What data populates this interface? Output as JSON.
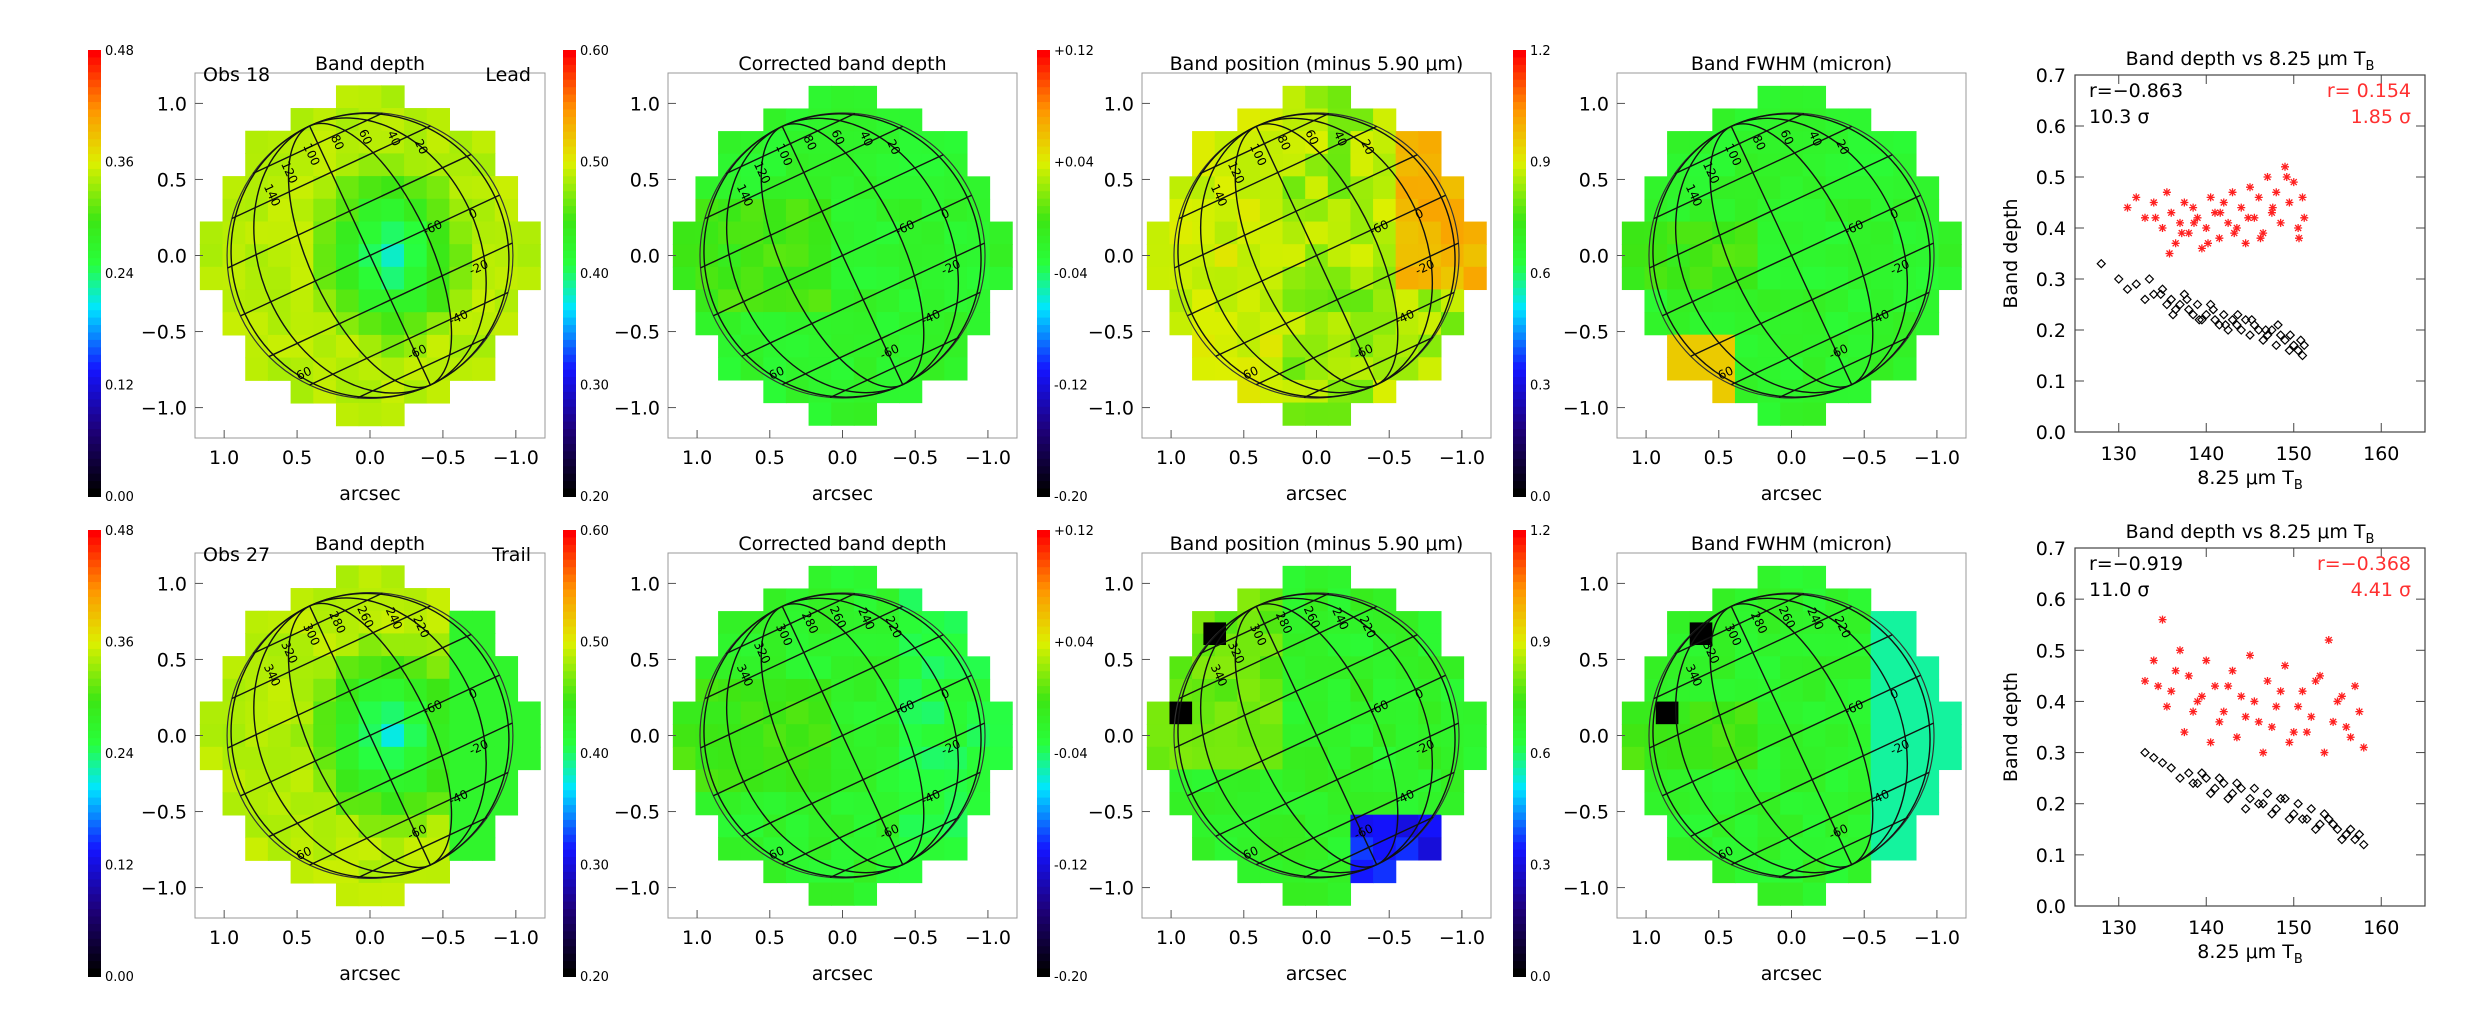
{
  "figure": {
    "rows": [
      {
        "obs_label": "Obs 18",
        "side_label": "Lead",
        "maps": [
          {
            "title": "Band depth",
            "cbar": {
              "min": "0.00",
              "ticks": [
                "0.12",
                "0.24",
                "0.36"
              ],
              "max": "0.48"
            },
            "mode": "depth"
          },
          {
            "title": "Corrected band depth",
            "cbar": {
              "min": "0.20",
              "ticks": [
                "0.30",
                "0.40",
                "0.50"
              ],
              "max": "0.60"
            },
            "mode": "corr"
          },
          {
            "title": "Band position (minus 5.90 μm)",
            "cbar": {
              "min": "-0.20",
              "ticks": [
                "-0.12",
                "-0.04",
                "+0.04"
              ],
              "max": "+0.12"
            },
            "mode": "pos"
          },
          {
            "title": "Band FWHM (micron)",
            "cbar": {
              "min": "0.0",
              "ticks": [
                "0.3",
                "0.6",
                "0.9"
              ],
              "max": "1.2"
            },
            "mode": "fwhm"
          }
        ],
        "lon_labels": [
          "140",
          "120",
          "100",
          "80",
          "60",
          "40",
          "20",
          "0",
          "-20",
          "-40",
          "-60"
        ],
        "lat_labels": [
          "60",
          "40",
          "20",
          "0",
          "-20",
          "-40",
          "-60"
        ]
      },
      {
        "obs_label": "Obs 27",
        "side_label": "Trail",
        "maps": [
          {
            "title": "Band depth",
            "cbar": {
              "min": "0.00",
              "ticks": [
                "0.12",
                "0.24",
                "0.36"
              ],
              "max": "0.48"
            },
            "mode": "depth"
          },
          {
            "title": "Corrected band depth",
            "cbar": {
              "min": "0.20",
              "ticks": [
                "0.30",
                "0.40",
                "0.50"
              ],
              "max": "0.60"
            },
            "mode": "corr"
          },
          {
            "title": "Band position (minus 5.90 μm)",
            "cbar": {
              "min": "-0.20",
              "ticks": [
                "-0.12",
                "-0.04",
                "+0.04"
              ],
              "max": "+0.12"
            },
            "mode": "pos"
          },
          {
            "title": "Band FWHM (micron)",
            "cbar": {
              "min": "0.0",
              "ticks": [
                "0.3",
                "0.6",
                "0.9"
              ],
              "max": "1.2"
            },
            "mode": "fwhm"
          }
        ],
        "lon_labels": [
          "340",
          "320",
          "300",
          "280",
          "260",
          "240",
          "220",
          "0",
          "-20",
          "-40",
          "-60"
        ],
        "lat_labels": [
          "60",
          "40",
          "20",
          "0",
          "-20",
          "-40",
          "-60"
        ]
      }
    ],
    "map_axes": {
      "xlabel": "arcsec",
      "ylim": [
        -1.2,
        1.2
      ],
      "xlim": [
        1.2,
        -1.2
      ],
      "xticks": [
        "1.0",
        "0.5",
        "0.0",
        "-0.5",
        "-1.0"
      ],
      "yticks": [
        "1.0",
        "0.5",
        "0.0",
        "-0.5",
        "-1.0"
      ]
    },
    "colors": {
      "series_black": "#000000",
      "series_red": "#ff2020",
      "stat_red": "#ff3030"
    }
  },
  "chart_data": [
    {
      "type": "scatter",
      "title": "Band depth vs 8.25 μm T_B",
      "xlabel": "8.25 μm T_B",
      "ylabel": "Band depth",
      "xlim": [
        125,
        165
      ],
      "ylim": [
        0.0,
        0.7
      ],
      "xticks": [
        130,
        140,
        150,
        160
      ],
      "yticks": [
        0.0,
        0.1,
        0.2,
        0.3,
        0.4,
        0.5,
        0.6,
        0.7
      ],
      "stats": {
        "black": {
          "r": "r=−0.863",
          "sigma": "10.3 σ"
        },
        "red": {
          "r": "r= 0.154",
          "sigma": "1.85 σ"
        }
      },
      "series": [
        {
          "name": "band depth",
          "color": "black",
          "marker": "diamond",
          "x": [
            128,
            130,
            131,
            132,
            133,
            133.5,
            134,
            135,
            135.5,
            136,
            136.5,
            137,
            137.5,
            138,
            138.5,
            139,
            139.5,
            140,
            140.5,
            141,
            141.5,
            142,
            142.5,
            143,
            143.5,
            144,
            144.5,
            145,
            145.5,
            146,
            146.5,
            147,
            147.5,
            148,
            148.5,
            149,
            149.5,
            150,
            150.5,
            151,
            151.2,
            150.8,
            149.6,
            148.2,
            146.8,
            145.2,
            143.6,
            142.2,
            140.8,
            139.2,
            137.8,
            136.2,
            134.8
          ],
          "y": [
            0.33,
            0.3,
            0.28,
            0.29,
            0.26,
            0.3,
            0.27,
            0.28,
            0.25,
            0.26,
            0.24,
            0.25,
            0.27,
            0.24,
            0.23,
            0.25,
            0.22,
            0.23,
            0.25,
            0.22,
            0.21,
            0.23,
            0.2,
            0.22,
            0.21,
            0.2,
            0.22,
            0.19,
            0.21,
            0.2,
            0.18,
            0.19,
            0.2,
            0.17,
            0.19,
            0.18,
            0.16,
            0.17,
            0.16,
            0.15,
            0.17,
            0.18,
            0.19,
            0.21,
            0.2,
            0.22,
            0.23,
            0.21,
            0.24,
            0.22,
            0.26,
            0.23,
            0.27
          ]
        },
        {
          "name": "corrected band depth",
          "color": "red",
          "marker": "asterisk",
          "x": [
            131,
            132,
            133,
            134,
            135,
            135.5,
            136,
            136.5,
            137,
            137.5,
            138,
            138.5,
            139,
            139.5,
            140,
            140.5,
            141,
            141.5,
            142,
            142.5,
            143,
            143.5,
            144,
            144.5,
            145,
            145.5,
            146,
            146.5,
            147,
            147.5,
            148,
            148.5,
            149,
            149.5,
            150,
            150.5,
            151,
            151.2,
            150.6,
            149.2,
            147.6,
            146.2,
            144.8,
            143.2,
            141.6,
            140.2,
            138.6,
            137.2,
            135.8,
            134.2
          ],
          "y": [
            0.44,
            0.46,
            0.42,
            0.45,
            0.4,
            0.47,
            0.43,
            0.37,
            0.41,
            0.45,
            0.39,
            0.44,
            0.42,
            0.36,
            0.4,
            0.46,
            0.43,
            0.38,
            0.45,
            0.41,
            0.47,
            0.4,
            0.44,
            0.37,
            0.48,
            0.42,
            0.46,
            0.39,
            0.5,
            0.43,
            0.47,
            0.41,
            0.52,
            0.45,
            0.49,
            0.4,
            0.46,
            0.42,
            0.38,
            0.5,
            0.44,
            0.38,
            0.42,
            0.39,
            0.43,
            0.37,
            0.41,
            0.39,
            0.35,
            0.42
          ]
        }
      ]
    },
    {
      "type": "scatter",
      "title": "Band depth vs 8.25 μm T_B",
      "xlabel": "8.25 μm T_B",
      "ylabel": "Band depth",
      "xlim": [
        125,
        165
      ],
      "ylim": [
        0.0,
        0.7
      ],
      "xticks": [
        130,
        140,
        150,
        160
      ],
      "yticks": [
        0.0,
        0.1,
        0.2,
        0.3,
        0.4,
        0.5,
        0.6,
        0.7
      ],
      "stats": {
        "black": {
          "r": "r=−0.919",
          "sigma": "11.0 σ"
        },
        "red": {
          "r": "r=−0.368",
          "sigma": "4.41 σ"
        }
      },
      "series": [
        {
          "name": "band depth",
          "color": "black",
          "marker": "diamond",
          "x": [
            133,
            134,
            135,
            136,
            137,
            138,
            139,
            140,
            141,
            142,
            143,
            144,
            145,
            146,
            147,
            148,
            149,
            150,
            151,
            152,
            153,
            154,
            155,
            156,
            157,
            158,
            157.5,
            156.5,
            155.5,
            154.5,
            153.5,
            152.5,
            151.5,
            150.5,
            149.5,
            148.5,
            147.5,
            146.5,
            145.5,
            144.5,
            143.5,
            142.5,
            141.5,
            140.5,
            139.5,
            138.5
          ],
          "y": [
            0.3,
            0.29,
            0.28,
            0.27,
            0.25,
            0.26,
            0.24,
            0.25,
            0.23,
            0.24,
            0.22,
            0.23,
            0.21,
            0.2,
            0.22,
            0.19,
            0.21,
            0.18,
            0.17,
            0.19,
            0.16,
            0.17,
            0.15,
            0.14,
            0.13,
            0.12,
            0.14,
            0.15,
            0.13,
            0.16,
            0.18,
            0.15,
            0.17,
            0.2,
            0.17,
            0.21,
            0.18,
            0.2,
            0.23,
            0.19,
            0.24,
            0.21,
            0.25,
            0.22,
            0.26,
            0.24
          ]
        },
        {
          "name": "corrected band depth",
          "color": "red",
          "marker": "asterisk",
          "x": [
            133,
            134,
            135,
            136,
            137,
            138,
            139,
            140,
            141,
            142,
            143,
            144,
            145,
            146,
            147,
            148,
            149,
            150,
            151,
            152,
            153,
            154,
            155,
            156,
            157,
            158,
            157.5,
            156.5,
            155.5,
            154.5,
            153.5,
            152.5,
            151.5,
            150.5,
            149.5,
            148.5,
            147.5,
            146.5,
            145.5,
            144.5,
            143.5,
            142.5,
            141.5,
            140.5,
            139.5,
            138.5,
            137.5,
            136.5,
            135.5,
            134.5
          ],
          "y": [
            0.44,
            0.48,
            0.56,
            0.42,
            0.5,
            0.45,
            0.4,
            0.48,
            0.43,
            0.38,
            0.46,
            0.41,
            0.49,
            0.36,
            0.44,
            0.39,
            0.47,
            0.34,
            0.42,
            0.37,
            0.45,
            0.52,
            0.4,
            0.35,
            0.43,
            0.31,
            0.38,
            0.33,
            0.41,
            0.36,
            0.3,
            0.44,
            0.34,
            0.39,
            0.32,
            0.42,
            0.35,
            0.3,
            0.4,
            0.37,
            0.33,
            0.43,
            0.36,
            0.32,
            0.41,
            0.38,
            0.34,
            0.46,
            0.39,
            0.43
          ]
        }
      ]
    }
  ]
}
